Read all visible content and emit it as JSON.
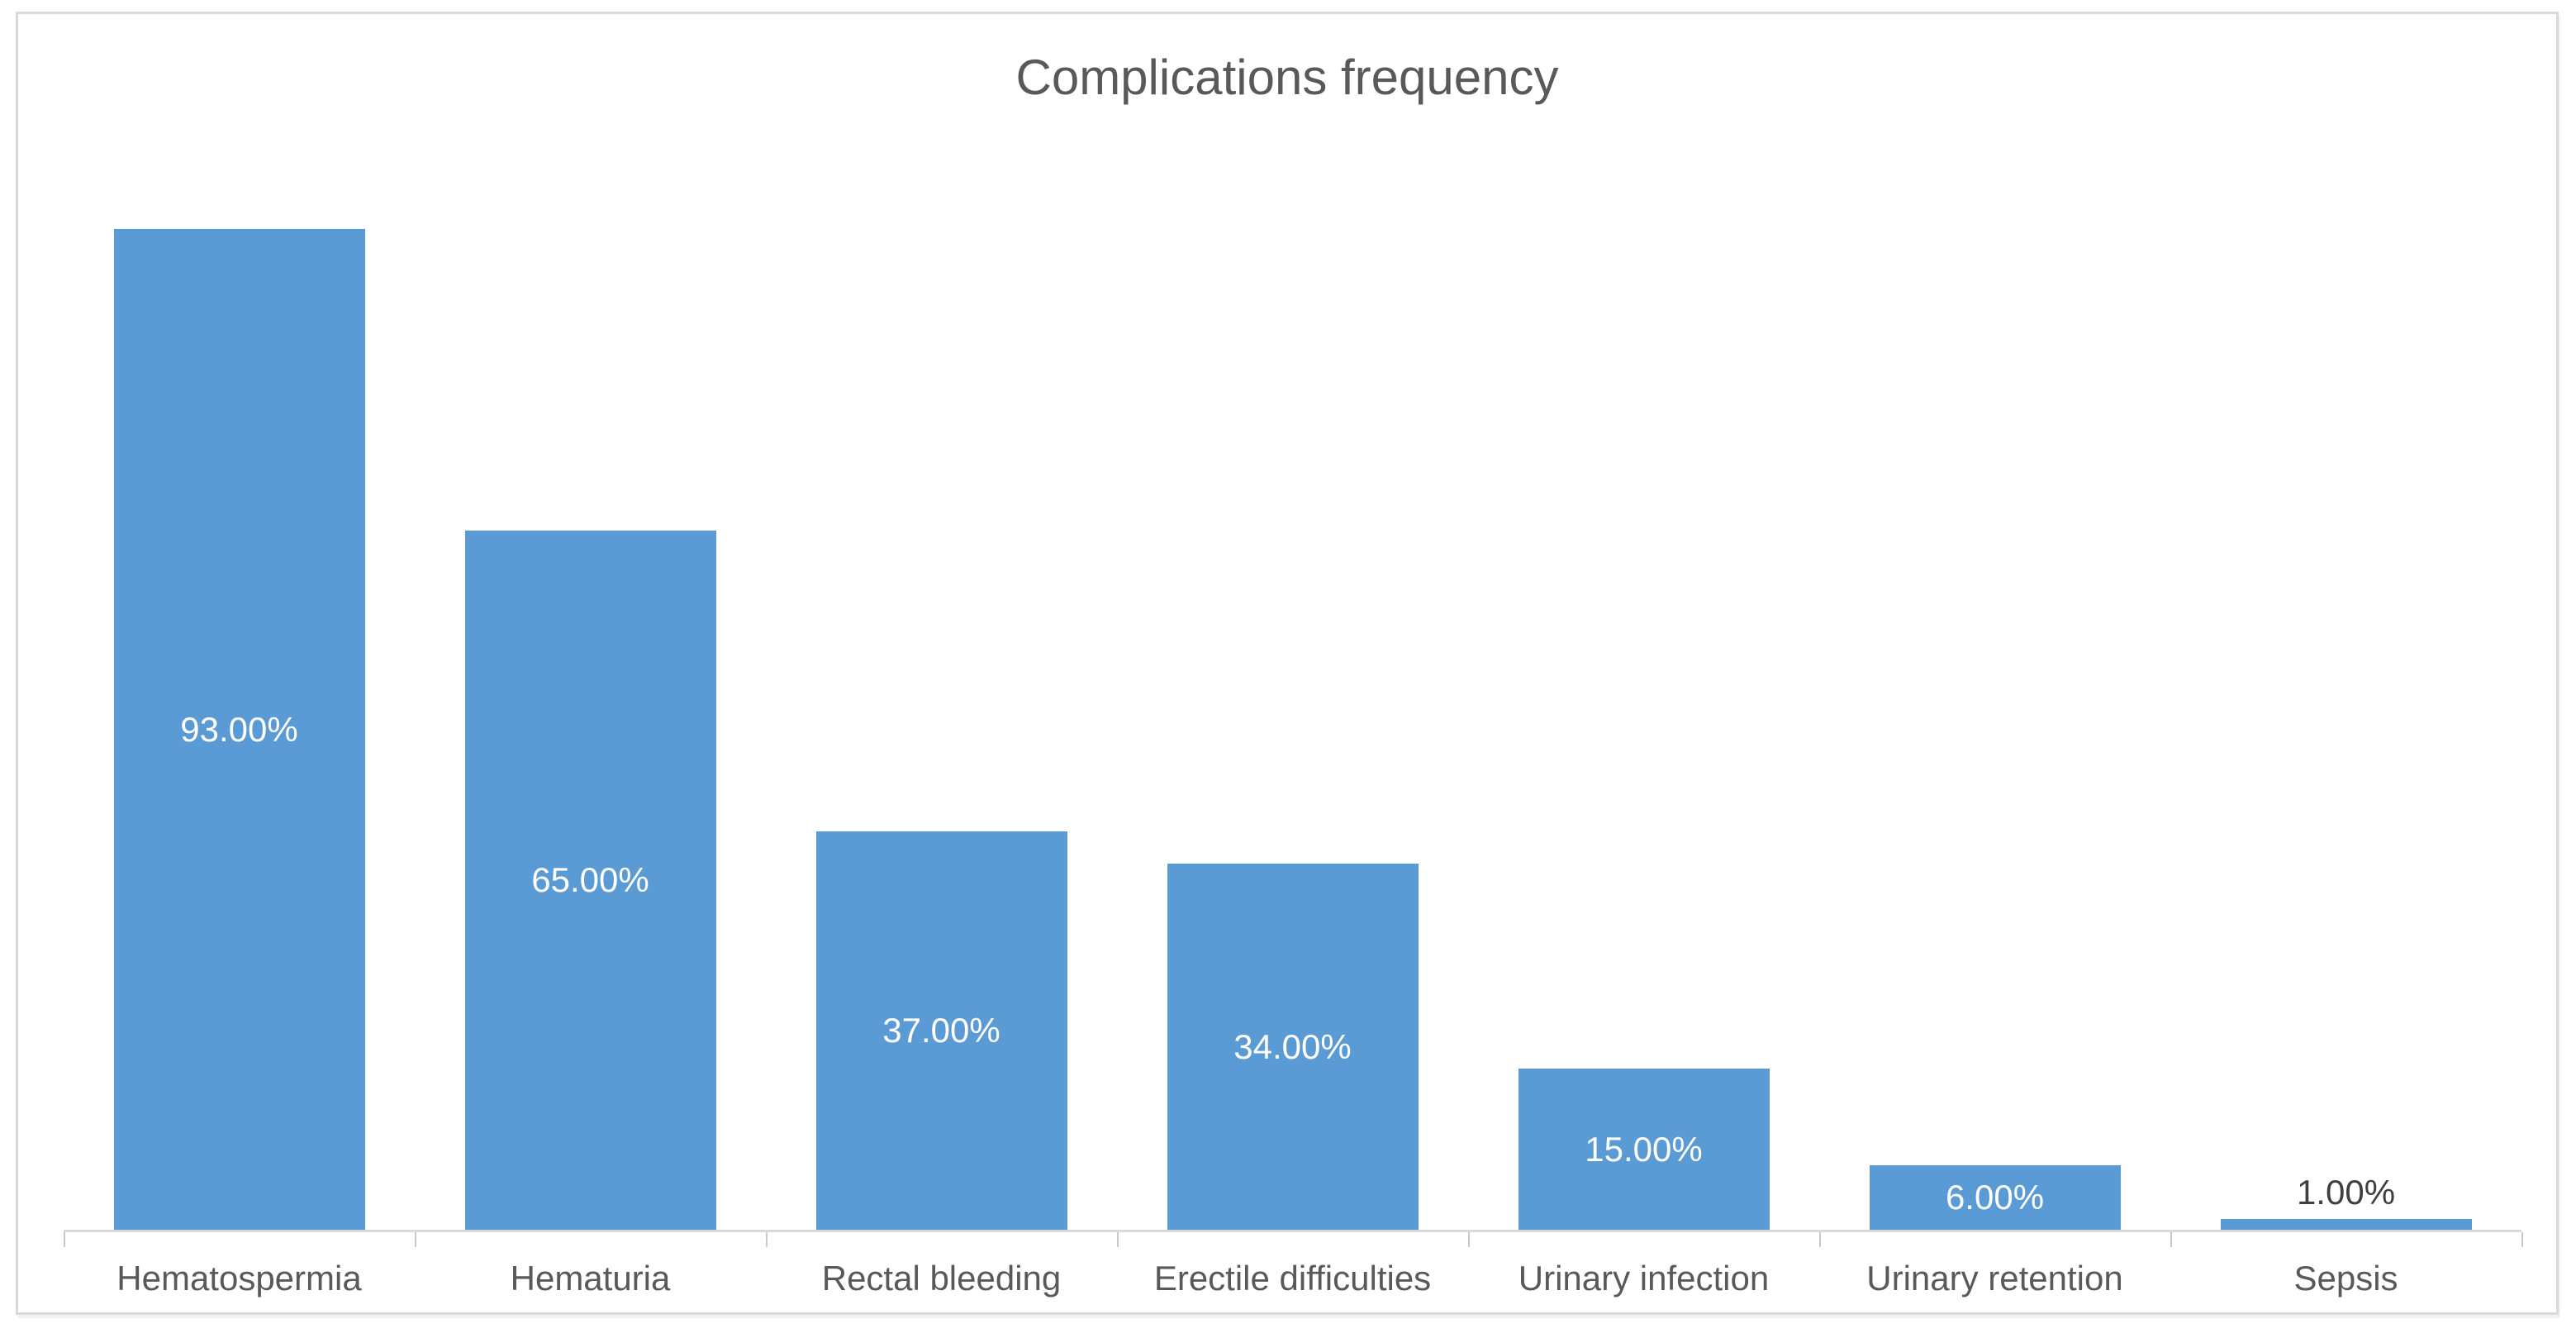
{
  "chart_data": {
    "type": "bar",
    "title": "Complications frequency",
    "categories": [
      "Hematospermia",
      "Hematuria",
      "Rectal bleeding",
      "Erectile difficulties",
      "Urinary infection",
      "Urinary retention",
      "Sepsis"
    ],
    "values": [
      93,
      65,
      37,
      34,
      15,
      6,
      1
    ],
    "value_labels": [
      "93.00%",
      "65.00%",
      "37.00%",
      "34.00%",
      "15.00%",
      "6.00%",
      "1.00%"
    ],
    "label_placement": [
      "inside-center",
      "inside-center",
      "inside-center",
      "inside-center",
      "inside-center",
      "inside-center",
      "outside-end"
    ],
    "xlabel": "",
    "ylabel": "",
    "ylim": [
      0,
      100
    ],
    "grid": false,
    "legend": "none",
    "colors": {
      "bar": "#5b9bd5",
      "title": "#595959",
      "category_label": "#595959",
      "inside_value_label": "#ffffff",
      "outside_value_label": "#3f3f3f",
      "axis_line": "#d9d9d9",
      "tick": "#c8c8c8",
      "frame_border": "#d9d9d9",
      "background": "#ffffff"
    }
  }
}
